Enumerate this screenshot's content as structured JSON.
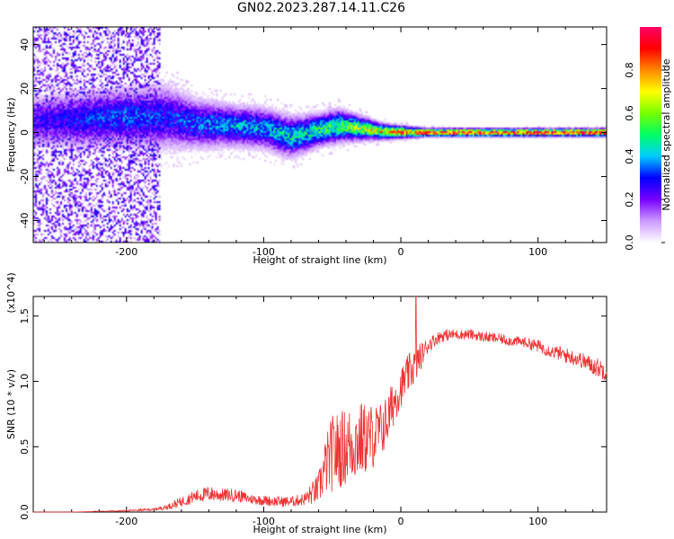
{
  "title": "GN02.2023.287.14.11.C26",
  "chart_data": [
    {
      "type": "heatmap",
      "xlabel": "Height of straight line (km)",
      "ylabel": "Frequency (Hz)",
      "xlim": [
        -268,
        150
      ],
      "ylim": [
        -50,
        48
      ],
      "x_ticks": [
        -200,
        -100,
        0,
        100
      ],
      "y_ticks": [
        40,
        20,
        0,
        -20,
        -40
      ],
      "colorbar": {
        "label": "Normalized spectral amplitude",
        "range": [
          0.0,
          1.0
        ],
        "ticks": [
          0.0,
          0.2,
          0.4,
          0.6,
          0.8
        ],
        "colors": [
          "#ffffff",
          "#cc99ff",
          "#7700ff",
          "#0000ff",
          "#00ccff",
          "#00ff66",
          "#77ff00",
          "#ffff00",
          "#ff8800",
          "#ff0000",
          "#ff0066"
        ]
      },
      "ridge": {
        "x": [
          -268,
          -230,
          -200,
          -170,
          -150,
          -120,
          -100,
          -80,
          -60,
          -45,
          -30,
          -15,
          0,
          20,
          50,
          100,
          150
        ],
        "center_hz": [
          5,
          6,
          7,
          7,
          4,
          3,
          2,
          -2,
          1,
          3,
          2,
          0.5,
          0.2,
          0,
          0,
          0,
          0
        ],
        "half_width_hz": [
          6,
          7,
          7,
          8,
          6,
          5,
          5,
          5,
          4,
          4,
          3,
          2,
          1.5,
          1,
          1,
          1,
          1
        ],
        "peak_amplitude": [
          0.25,
          0.3,
          0.35,
          0.3,
          0.35,
          0.4,
          0.4,
          0.45,
          0.5,
          0.55,
          0.6,
          0.7,
          0.85,
          0.95,
          0.95,
          0.95,
          0.95
        ]
      },
      "noise_region": {
        "x_range": [
          -268,
          -175
        ],
        "amplitude": 0.2
      }
    },
    {
      "type": "line",
      "xlabel": "Height of straight line (km)",
      "ylabel": "SNR (10 * v/v)",
      "y_multiplier": "(x10^4)",
      "xlim": [
        -268,
        150
      ],
      "ylim": [
        0.0,
        1.65
      ],
      "x_ticks": [
        -200,
        -100,
        0,
        100
      ],
      "y_ticks": [
        0.0,
        0.5,
        1.0,
        1.5
      ],
      "color": "#ee3333",
      "series": [
        {
          "x": [
            -268,
            -240,
            -200,
            -180,
            -170,
            -160,
            -150,
            -140,
            -130,
            -120,
            -110,
            -100,
            -90,
            -80,
            -70,
            -60,
            -55,
            -50,
            -40,
            -30,
            -20,
            -15,
            -10,
            -5,
            0,
            5,
            10,
            15,
            20,
            25,
            30,
            40,
            50,
            60,
            70,
            80,
            90,
            100,
            110,
            120,
            130,
            140,
            150
          ],
          "values": [
            0.0,
            0.0,
            0.01,
            0.02,
            0.04,
            0.08,
            0.12,
            0.14,
            0.13,
            0.13,
            0.1,
            0.09,
            0.08,
            0.08,
            0.1,
            0.18,
            0.35,
            0.45,
            0.5,
            0.55,
            0.58,
            0.62,
            0.7,
            0.85,
            0.95,
            1.05,
            1.12,
            1.2,
            1.28,
            1.32,
            1.35,
            1.36,
            1.36,
            1.34,
            1.33,
            1.31,
            1.3,
            1.27,
            1.23,
            1.2,
            1.17,
            1.12,
            1.08
          ],
          "noise_amplitude": [
            0.0,
            0.0,
            0.005,
            0.01,
            0.02,
            0.04,
            0.05,
            0.06,
            0.05,
            0.05,
            0.04,
            0.04,
            0.04,
            0.04,
            0.05,
            0.12,
            0.22,
            0.3,
            0.3,
            0.3,
            0.25,
            0.22,
            0.2,
            0.18,
            0.15,
            0.15,
            0.15,
            0.1,
            0.06,
            0.05,
            0.05,
            0.04,
            0.04,
            0.04,
            0.04,
            0.04,
            0.04,
            0.05,
            0.05,
            0.06,
            0.06,
            0.07,
            0.08
          ],
          "peak": {
            "x": 11,
            "value": 1.65
          }
        }
      ]
    }
  ]
}
